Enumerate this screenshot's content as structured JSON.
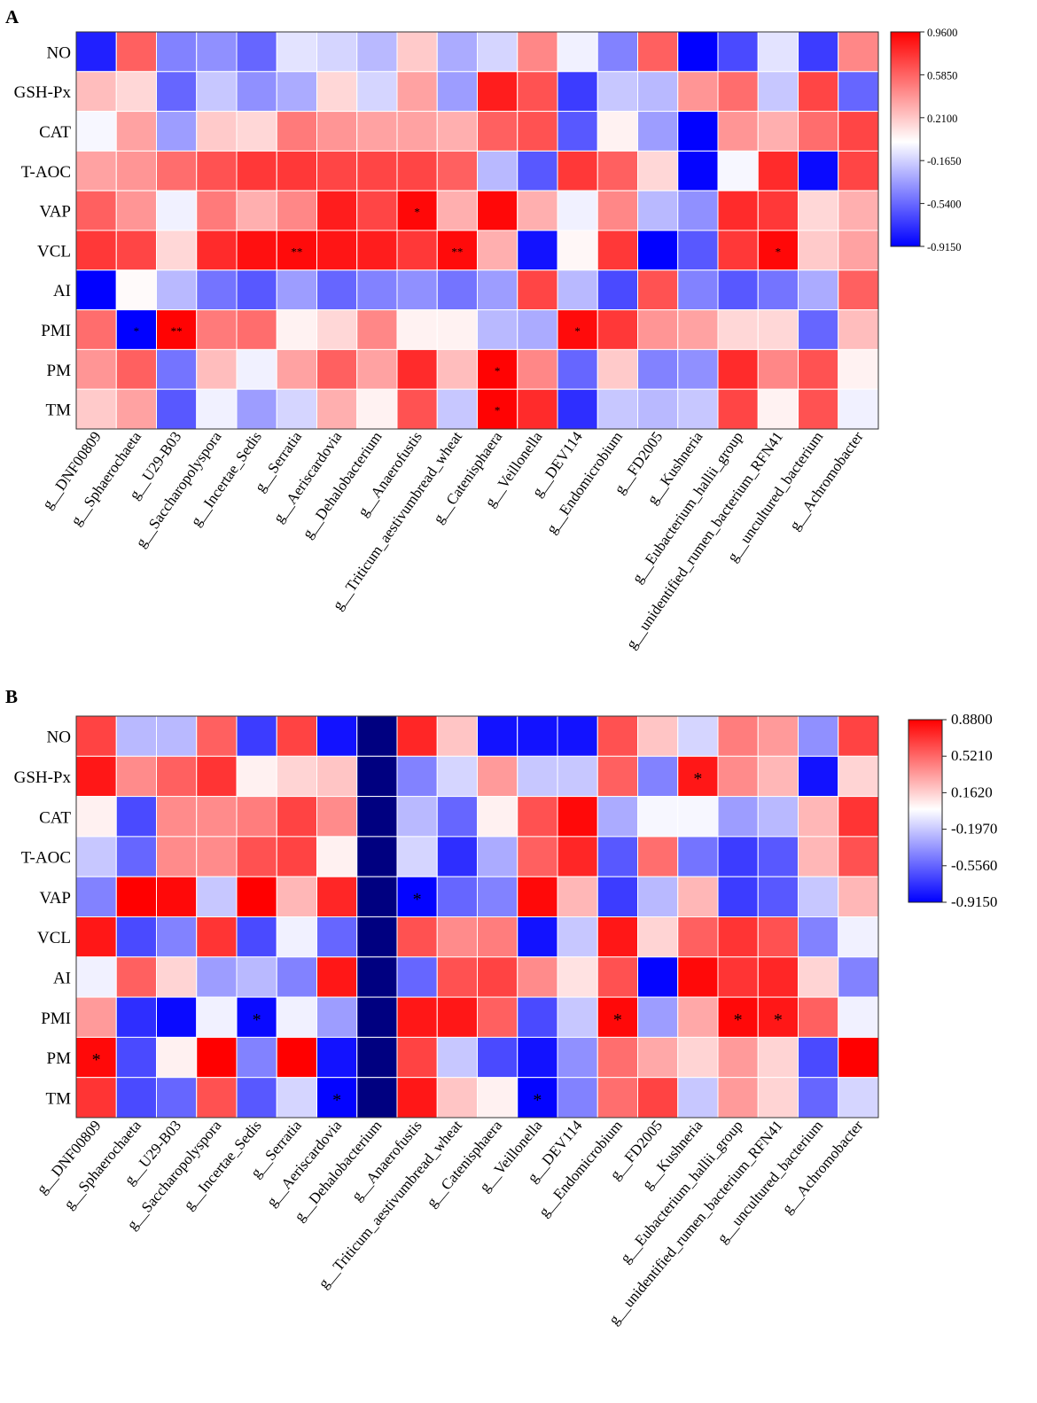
{
  "chart_data": [
    {
      "panel": "A",
      "type": "heatmap",
      "rows": [
        "NO",
        "GSH-Px",
        "CAT",
        "T-AOC",
        "VAP",
        "VCL",
        "AI",
        "PMI",
        "PM",
        "TM"
      ],
      "columns": [
        "g__DNF00809",
        "g__Sphaerochaeta",
        "g__U29-B03",
        "g__Saccharopolyspora",
        "g__Incertae_Sedis",
        "g__Serratia",
        "g__Aeriscardovia",
        "g__Dehalobacterium",
        "g__Anaerofustis",
        "g__Triticum_aestivumbread_wheat",
        "g__Catenisphaera",
        "g__Veillonella",
        "g__DEV114",
        "g__Endomicrobium",
        "g__FD2005",
        "g__Kushneria",
        "g__Eubacterium_hallii_group",
        "g__unidentified_rumen_bacterium_RFN41",
        "g__uncultured_bacterium",
        "g__Achromobacter"
      ],
      "values": [
        [
          -0.8,
          0.6,
          -0.45,
          -0.4,
          -0.55,
          -0.1,
          -0.15,
          -0.25,
          0.2,
          -0.3,
          -0.15,
          0.45,
          -0.05,
          -0.45,
          0.6,
          -0.91,
          -0.65,
          -0.1,
          -0.7,
          0.45
        ],
        [
          0.25,
          0.15,
          -0.55,
          -0.2,
          -0.4,
          -0.3,
          0.15,
          -0.15,
          0.35,
          -0.35,
          0.85,
          0.65,
          -0.7,
          -0.2,
          -0.25,
          0.4,
          0.55,
          -0.2,
          0.7,
          -0.55
        ],
        [
          -0.03,
          0.35,
          -0.35,
          0.2,
          0.15,
          0.5,
          0.4,
          0.35,
          0.35,
          0.3,
          0.6,
          0.65,
          -0.6,
          0.05,
          -0.35,
          -0.91,
          0.4,
          0.3,
          0.55,
          0.7
        ],
        [
          0.35,
          0.4,
          0.55,
          0.65,
          0.75,
          0.75,
          0.7,
          0.7,
          0.7,
          0.6,
          -0.25,
          -0.6,
          0.75,
          0.6,
          0.15,
          -0.9,
          -0.03,
          0.8,
          -0.88,
          0.7
        ],
        [
          0.6,
          0.4,
          -0.05,
          0.5,
          0.3,
          0.45,
          0.85,
          0.7,
          0.93,
          0.3,
          0.93,
          0.3,
          -0.05,
          0.45,
          -0.25,
          -0.4,
          0.8,
          0.75,
          0.15,
          0.3
        ],
        [
          0.75,
          0.7,
          0.15,
          0.8,
          0.9,
          0.92,
          0.88,
          0.85,
          0.75,
          0.92,
          0.3,
          -0.85,
          0.03,
          0.75,
          -0.91,
          -0.6,
          0.75,
          0.93,
          0.2,
          0.35
        ],
        [
          -0.91,
          0.02,
          -0.25,
          -0.5,
          -0.6,
          -0.35,
          -0.55,
          -0.45,
          -0.4,
          -0.5,
          -0.35,
          0.7,
          -0.25,
          -0.65,
          0.65,
          -0.45,
          -0.6,
          -0.5,
          -0.3,
          0.6
        ],
        [
          0.55,
          -0.91,
          0.95,
          0.5,
          0.55,
          0.05,
          0.15,
          0.45,
          0.05,
          0.05,
          -0.25,
          -0.3,
          0.92,
          0.75,
          0.4,
          0.35,
          0.15,
          0.15,
          -0.55,
          0.25
        ],
        [
          0.4,
          0.6,
          -0.5,
          0.25,
          -0.05,
          0.35,
          0.6,
          0.35,
          0.8,
          0.25,
          0.95,
          0.45,
          -0.55,
          0.2,
          -0.45,
          -0.4,
          0.8,
          0.45,
          0.65,
          0.05
        ],
        [
          0.2,
          0.35,
          -0.6,
          -0.05,
          -0.35,
          -0.15,
          0.3,
          0.05,
          0.65,
          -0.2,
          0.95,
          0.8,
          -0.75,
          -0.2,
          -0.25,
          -0.2,
          0.7,
          0.05,
          0.65,
          -0.05
        ]
      ],
      "significance": [
        [
          "",
          "",
          "",
          "",
          "",
          "",
          "",
          "",
          "",
          "",
          "",
          "",
          "",
          "",
          "",
          "",
          "",
          "",
          "",
          ""
        ],
        [
          "",
          "",
          "",
          "",
          "",
          "",
          "",
          "",
          "",
          "",
          "",
          "",
          "",
          "",
          "",
          "",
          "",
          "",
          "",
          ""
        ],
        [
          "",
          "",
          "",
          "",
          "",
          "",
          "",
          "",
          "",
          "",
          "",
          "",
          "",
          "",
          "",
          "",
          "",
          "",
          "",
          ""
        ],
        [
          "",
          "",
          "",
          "",
          "",
          "",
          "",
          "",
          "",
          "",
          "",
          "",
          "",
          "",
          "",
          "",
          "",
          "",
          "",
          ""
        ],
        [
          "",
          "",
          "",
          "",
          "",
          "",
          "",
          "",
          "*",
          "",
          "",
          "",
          "",
          "",
          "",
          "",
          "",
          "",
          "",
          ""
        ],
        [
          "",
          "",
          "",
          "",
          "",
          "**",
          "",
          "",
          "",
          "**",
          "",
          "",
          "",
          "",
          "",
          "",
          "",
          "*",
          "",
          ""
        ],
        [
          "",
          "",
          "",
          "",
          "",
          "",
          "",
          "",
          "",
          "",
          "",
          "",
          "",
          "",
          "",
          "",
          "",
          "",
          "",
          ""
        ],
        [
          "",
          "*",
          "**",
          "",
          "",
          "",
          "",
          "",
          "",
          "",
          "",
          "",
          "*",
          "",
          "",
          "",
          "",
          "",
          "",
          ""
        ],
        [
          "",
          "",
          "",
          "",
          "",
          "",
          "",
          "",
          "",
          "",
          "*",
          "",
          "",
          "",
          "",
          "",
          "",
          "",
          "",
          ""
        ],
        [
          "",
          "",
          "",
          "",
          "",
          "",
          "",
          "",
          "",
          "",
          "*",
          "",
          "",
          "",
          "",
          "",
          "",
          "",
          "",
          ""
        ]
      ],
      "color_range": [
        -0.915,
        0.96
      ],
      "colorbar_ticks": [
        "0.9600",
        "0.5850",
        "0.2100",
        "-0.1650",
        "-0.5400",
        "-0.9150"
      ],
      "colors": {
        "low": "#0000ff",
        "mid": "#ffffff",
        "high": "#ff0000"
      }
    },
    {
      "panel": "B",
      "type": "heatmap",
      "rows": [
        "NO",
        "GSH-Px",
        "CAT",
        "T-AOC",
        "VAP",
        "VCL",
        "AI",
        "PMI",
        "PM",
        "TM"
      ],
      "columns": [
        "g__DNF00809",
        "g__Sphaerochaeta",
        "g__U29-B03",
        "g__Saccharopolyspora",
        "g__Incertae_Sedis",
        "g__Serratia",
        "g__Aeriscardovia",
        "g__Dehalobacterium",
        "g__Anaerofustis",
        "g__Triticum_aestivumbread_wheat",
        "g__Catenisphaera",
        "g__Veillonella",
        "g__DEV114",
        "g__Endomicrobium",
        "g__FD2005",
        "g__Kushneria",
        "g__Eubacterium_hallii_group",
        "g__unidentified_rumen_bacterium_RFN41",
        "g__uncultured_bacterium",
        "g__Achromobacter"
      ],
      "values": [
        [
          0.65,
          -0.25,
          -0.25,
          0.55,
          -0.7,
          0.65,
          -0.85,
          null,
          0.75,
          0.2,
          -0.85,
          -0.85,
          -0.85,
          0.6,
          0.2,
          -0.15,
          0.45,
          0.35,
          -0.4,
          0.65
        ],
        [
          0.8,
          0.4,
          0.55,
          0.7,
          0.05,
          0.15,
          0.2,
          null,
          -0.45,
          -0.15,
          0.35,
          -0.2,
          -0.2,
          0.55,
          -0.45,
          0.8,
          0.4,
          0.25,
          -0.85,
          0.15
        ],
        [
          0.05,
          -0.65,
          0.4,
          0.4,
          0.45,
          0.65,
          0.4,
          null,
          -0.25,
          -0.55,
          0.05,
          0.6,
          0.85,
          -0.3,
          -0.03,
          -0.03,
          -0.35,
          -0.25,
          0.25,
          0.7
        ],
        [
          -0.2,
          -0.55,
          0.4,
          0.4,
          0.6,
          0.65,
          0.05,
          null,
          -0.15,
          -0.75,
          -0.3,
          0.55,
          0.75,
          -0.6,
          0.5,
          -0.5,
          -0.7,
          -0.6,
          0.25,
          0.6
        ],
        [
          -0.45,
          0.88,
          0.85,
          -0.2,
          0.88,
          0.25,
          0.75,
          null,
          -0.9,
          -0.55,
          -0.45,
          0.85,
          0.25,
          -0.7,
          -0.25,
          0.25,
          -0.7,
          -0.6,
          -0.2,
          0.25
        ],
        [
          0.8,
          -0.65,
          -0.45,
          0.7,
          -0.65,
          -0.05,
          -0.55,
          null,
          0.6,
          0.4,
          0.45,
          -0.85,
          -0.2,
          0.8,
          0.15,
          0.55,
          0.7,
          0.6,
          -0.45,
          -0.05
        ],
        [
          -0.05,
          0.55,
          0.15,
          -0.35,
          -0.25,
          -0.45,
          0.8,
          null,
          -0.55,
          0.6,
          0.65,
          0.4,
          0.1,
          0.6,
          -0.9,
          0.85,
          0.7,
          0.75,
          0.15,
          -0.45
        ],
        [
          0.35,
          -0.75,
          -0.88,
          -0.05,
          -0.88,
          -0.05,
          -0.35,
          null,
          0.8,
          0.8,
          0.55,
          -0.65,
          -0.2,
          0.85,
          -0.35,
          0.3,
          0.85,
          0.8,
          0.55,
          -0.05
        ],
        [
          0.85,
          -0.65,
          0.05,
          0.88,
          -0.45,
          0.88,
          -0.85,
          null,
          0.65,
          -0.2,
          -0.65,
          -0.85,
          -0.4,
          0.5,
          0.3,
          0.15,
          0.35,
          0.15,
          -0.65,
          0.88
        ],
        [
          0.7,
          -0.65,
          -0.55,
          0.6,
          -0.6,
          -0.15,
          -0.9,
          null,
          0.8,
          0.2,
          0.05,
          -0.9,
          -0.45,
          0.5,
          0.65,
          -0.2,
          0.35,
          0.15,
          -0.55,
          -0.15
        ]
      ],
      "significance": [
        [
          "",
          "",
          "",
          "",
          "",
          "",
          "",
          "",
          "",
          "",
          "",
          "",
          "",
          "",
          "",
          "",
          "",
          "",
          "",
          ""
        ],
        [
          "",
          "",
          "",
          "",
          "",
          "",
          "",
          "",
          "",
          "",
          "",
          "",
          "",
          "",
          "",
          "*",
          "",
          "",
          "",
          ""
        ],
        [
          "",
          "",
          "",
          "",
          "",
          "",
          "",
          "",
          "",
          "",
          "",
          "",
          "",
          "",
          "",
          "",
          "",
          "",
          "",
          ""
        ],
        [
          "",
          "",
          "",
          "",
          "",
          "",
          "",
          "",
          "",
          "",
          "",
          "",
          "",
          "",
          "",
          "",
          "",
          "",
          "",
          ""
        ],
        [
          "",
          "",
          "",
          "",
          "",
          "",
          "",
          "",
          "*",
          "",
          "",
          "",
          "",
          "",
          "",
          "",
          "",
          "",
          "",
          ""
        ],
        [
          "",
          "",
          "",
          "",
          "",
          "",
          "",
          "",
          "",
          "",
          "",
          "",
          "",
          "",
          "",
          "",
          "",
          "",
          "",
          ""
        ],
        [
          "",
          "",
          "",
          "",
          "",
          "",
          "",
          "",
          "",
          "",
          "",
          "",
          "",
          "",
          "",
          "",
          "",
          "",
          "",
          ""
        ],
        [
          "",
          "",
          "",
          "",
          "*",
          "",
          "",
          "",
          "",
          "",
          "",
          "",
          "",
          "*",
          "",
          "",
          "*",
          "*",
          "",
          ""
        ],
        [
          "*",
          "",
          "",
          "",
          "",
          "",
          "",
          "",
          "",
          "",
          "",
          "",
          "",
          "",
          "",
          "",
          "",
          "",
          "",
          ""
        ],
        [
          "",
          "",
          "",
          "",
          "",
          "",
          "*",
          "",
          "",
          "",
          "",
          "*",
          "",
          "",
          "",
          "",
          "",
          "",
          "",
          ""
        ]
      ],
      "color_range": [
        -0.915,
        0.88
      ],
      "colorbar_ticks": [
        "0.8800",
        "0.5210",
        "0.1620",
        "-0.1970",
        "-0.5560",
        "-0.9150"
      ],
      "colors": {
        "low": "#0000ff",
        "mid": "#ffffff",
        "high": "#ff0000",
        "missing": "#000080"
      }
    }
  ]
}
